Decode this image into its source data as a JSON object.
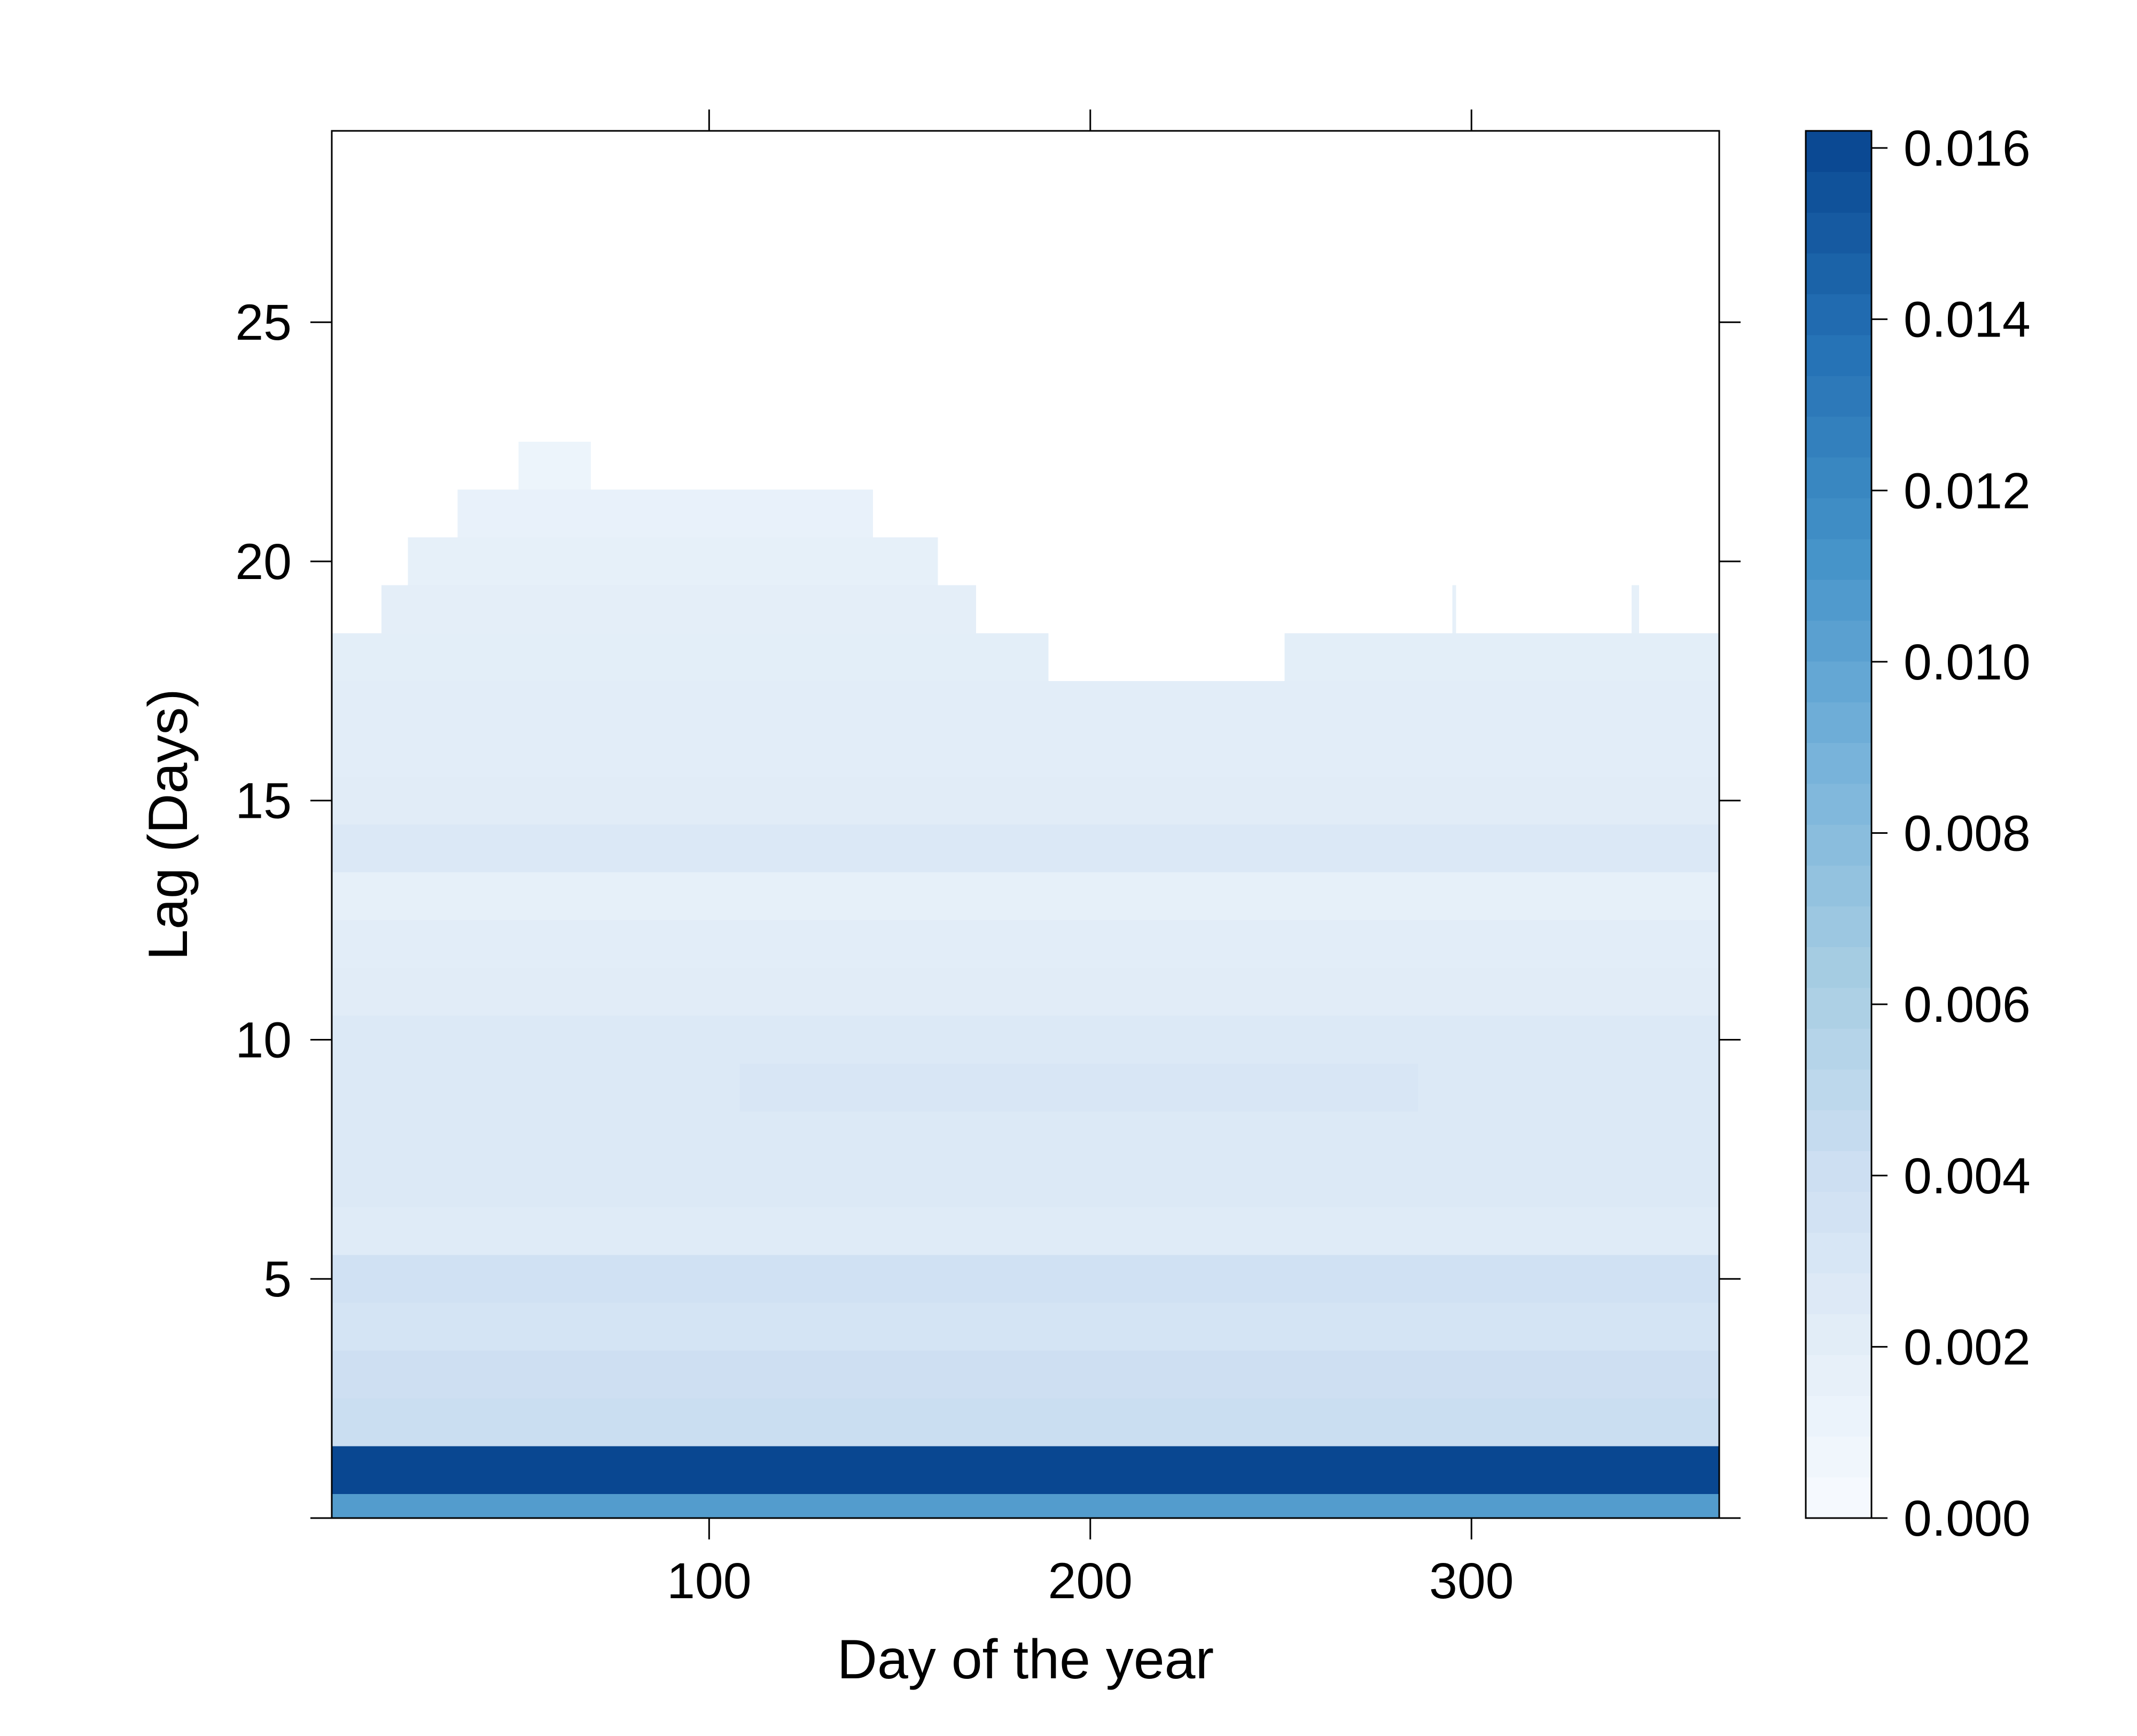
{
  "chart_data": {
    "type": "heatmap",
    "xlabel": "Day of the year",
    "ylabel": "Lag (Days)",
    "x_range": [
      1,
      365
    ],
    "y_range": [
      0,
      29
    ],
    "x_ticks": [
      100,
      200,
      300
    ],
    "x_tick_labels": [
      "100",
      "200",
      "300"
    ],
    "y_ticks": [
      0,
      5,
      10,
      15,
      20,
      25
    ],
    "y_tick_labels": [
      "",
      "5",
      "10",
      "15",
      "20",
      "25"
    ],
    "colorbar": {
      "min": 0.0,
      "max": 0.0162,
      "ticks": [
        0.0,
        0.002,
        0.004,
        0.006,
        0.008,
        0.01,
        0.012,
        0.014,
        0.016
      ],
      "tick_labels": [
        "0.000",
        "0.002",
        "0.004",
        "0.006",
        "0.008",
        "0.010",
        "0.012",
        "0.014",
        "0.016"
      ],
      "color_low": "#f7fbff",
      "color_high": "#08458f"
    },
    "cells": [
      {
        "lag": 0,
        "x_from": 1,
        "x_to": 365,
        "value": 0.0106
      },
      {
        "lag": 1,
        "x_from": 1,
        "x_to": 365,
        "value": 0.0161
      },
      {
        "lag": 2,
        "x_from": 1,
        "x_to": 365,
        "value": 0.0042
      },
      {
        "lag": 3,
        "x_from": 1,
        "x_to": 365,
        "value": 0.004
      },
      {
        "lag": 4,
        "x_from": 1,
        "x_to": 365,
        "value": 0.0034
      },
      {
        "lag": 5,
        "x_from": 1,
        "x_to": 365,
        "value": 0.0038
      },
      {
        "lag": 6,
        "x_from": 1,
        "x_to": 365,
        "value": 0.0024
      },
      {
        "lag": 7,
        "x_from": 1,
        "x_to": 365,
        "value": 0.0027
      },
      {
        "lag": 8,
        "x_from": 1,
        "x_to": 365,
        "value": 0.0027
      },
      {
        "lag": 9,
        "x_from": 1,
        "x_to": 108,
        "value": 0.0027
      },
      {
        "lag": 9,
        "x_from": 108,
        "x_to": 286,
        "value": 0.003
      },
      {
        "lag": 9,
        "x_from": 286,
        "x_to": 365,
        "value": 0.0027
      },
      {
        "lag": 10,
        "x_from": 1,
        "x_to": 365,
        "value": 0.0027
      },
      {
        "lag": 11,
        "x_from": 1,
        "x_to": 365,
        "value": 0.0022
      },
      {
        "lag": 12,
        "x_from": 1,
        "x_to": 365,
        "value": 0.0021
      },
      {
        "lag": 13,
        "x_from": 1,
        "x_to": 365,
        "value": 0.0017
      },
      {
        "lag": 14,
        "x_from": 1,
        "x_to": 365,
        "value": 0.0028
      },
      {
        "lag": 15,
        "x_from": 1,
        "x_to": 365,
        "value": 0.0022
      },
      {
        "lag": 16,
        "x_from": 1,
        "x_to": 365,
        "value": 0.0021
      },
      {
        "lag": 17,
        "x_from": 1,
        "x_to": 365,
        "value": 0.0021
      },
      {
        "lag": 18,
        "x_from": 1,
        "x_to": 189,
        "value": 0.002
      },
      {
        "lag": 18,
        "x_from": 251,
        "x_to": 365,
        "value": 0.002
      },
      {
        "lag": 19,
        "x_from": 14,
        "x_to": 170,
        "value": 0.0019
      },
      {
        "lag": 19,
        "x_from": 295,
        "x_to": 296,
        "value": 0.0017
      },
      {
        "lag": 19,
        "x_from": 342,
        "x_to": 344,
        "value": 0.0017
      },
      {
        "lag": 20,
        "x_from": 21,
        "x_to": 160,
        "value": 0.0017
      },
      {
        "lag": 21,
        "x_from": 34,
        "x_to": 143,
        "value": 0.0015
      },
      {
        "lag": 22,
        "x_from": 50,
        "x_to": 69,
        "value": 0.0011
      }
    ]
  }
}
